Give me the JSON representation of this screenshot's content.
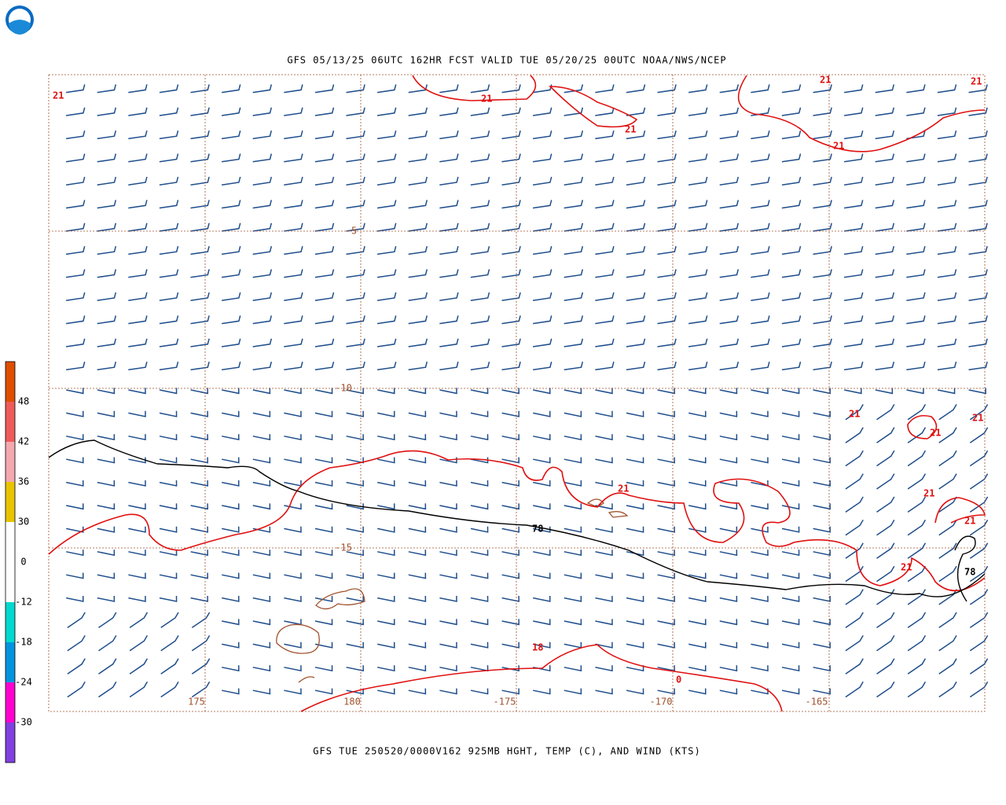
{
  "header": {
    "title": "GFS 05/13/25 06UTC 162HR FCST VALID TUE 05/20/25 00UTC NOAA/NWS/NCEP",
    "footer": "GFS TUE 250520/0000V162 925MB HGHT, TEMP (C), AND WIND (KTS)"
  },
  "colorbar": {
    "colors": [
      "#e04e00",
      "#f05a5a",
      "#f4a8b0",
      "#e8c400",
      "#ffffff",
      "#ffffff",
      "#00d8d0",
      "#0094e0",
      "#ff00d0",
      "#8040e0"
    ],
    "labels": [
      "48",
      "42",
      "36",
      "30",
      "0",
      "-12",
      "-18",
      "-24",
      "-30"
    ]
  },
  "lat_labels": [
    "-5",
    "-10",
    "-15"
  ],
  "lon_labels": [
    "175",
    "180",
    "-175",
    "-170",
    "-165"
  ],
  "contour_labels": [
    "21",
    "21",
    "21",
    "21",
    "21",
    "21",
    "21",
    "21",
    "21",
    "21",
    "21",
    "21",
    "21",
    "78",
    "78",
    "18",
    "0"
  ]
}
